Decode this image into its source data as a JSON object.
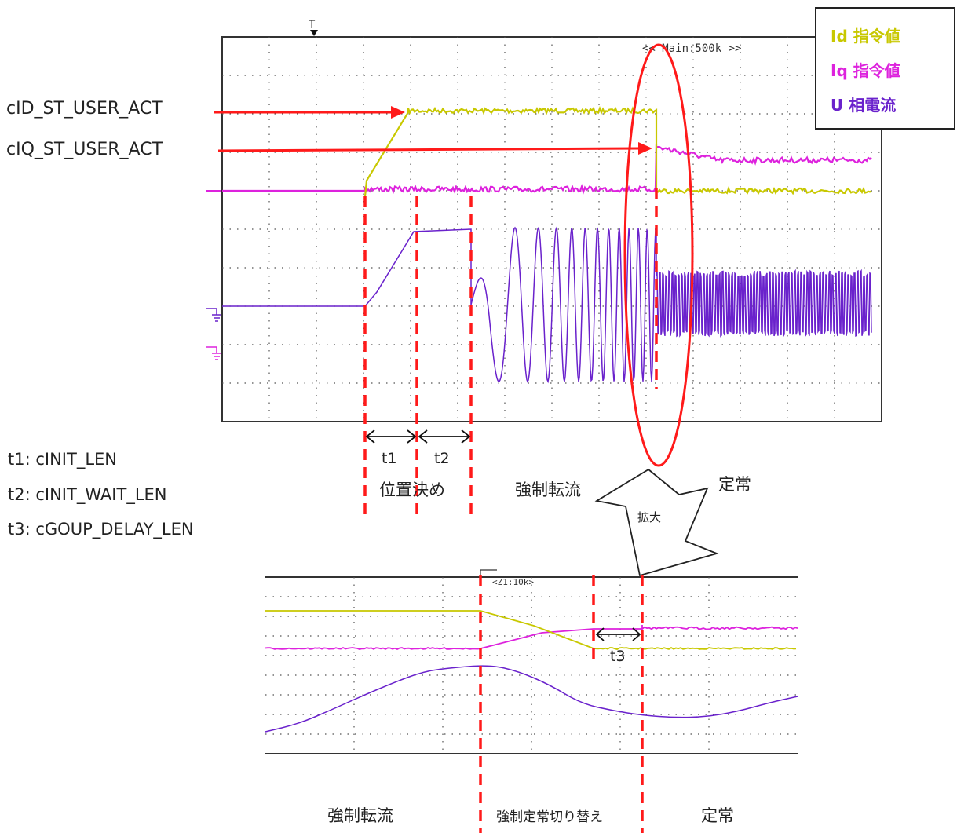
{
  "trigger_marker": "T",
  "main_scope": {
    "timebase_label": "<< Main:500k >>"
  },
  "zoom_scope": {
    "timebase_label": "<Z1:10k>"
  },
  "legend": {
    "items": [
      {
        "label": "Id 指令値",
        "color": "#c8c800"
      },
      {
        "label": "Iq 指令値",
        "color": "#dd22dd"
      },
      {
        "label": "U 相電流",
        "color": "#6a22cc"
      }
    ]
  },
  "signals": {
    "id_act": "cID_ST_USER_ACT",
    "iq_act": "cIQ_ST_USER_ACT"
  },
  "param_notes": [
    "t1: cINIT_LEN",
    "t2: cINIT_WAIT_LEN",
    "t3: cGOUP_DELAY_LEN"
  ],
  "intervals": {
    "t1": "t1",
    "t2": "t2",
    "t3": "t3"
  },
  "phases_main": {
    "positioning": "位置決め",
    "forced": "強制転流",
    "steady": "定常"
  },
  "zoom_callout": "拡大",
  "phases_zoom": {
    "forced": "強制転流",
    "switch": "強制定常切り替え",
    "steady": "定常"
  },
  "colors": {
    "id_trace": "#c8c800",
    "iq_trace": "#dd22dd",
    "u_trace": "#6a22cc",
    "annotation_red": "#ff1a1a",
    "grid_dot": "#555555"
  }
}
